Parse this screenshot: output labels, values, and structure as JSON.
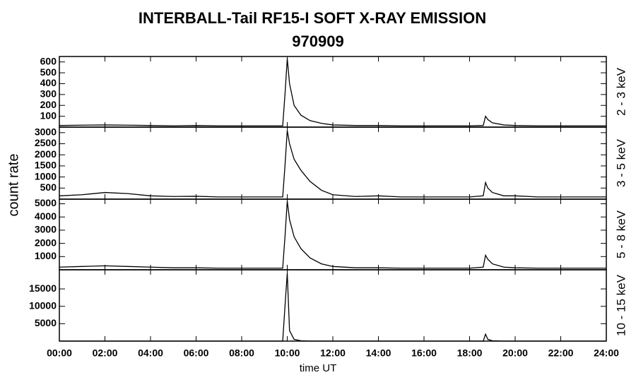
{
  "chart_data": [
    {
      "type": "line",
      "title": "INTERBALL-Tail RF15-I SOFT X-RAY EMISSION",
      "subtitle": "970909",
      "ylabel": "count rate",
      "panel_label": "2 - 3 keV",
      "color": "#000000",
      "xlim": [
        0,
        24
      ],
      "ylim": [
        0,
        650
      ],
      "yticks": [
        100,
        200,
        300,
        400,
        500,
        600
      ],
      "x": [
        0,
        1,
        2,
        3,
        4,
        5,
        6,
        7,
        8,
        9,
        9.8,
        9.9,
        10.0,
        10.1,
        10.3,
        10.6,
        11,
        11.5,
        12,
        13,
        14,
        15,
        16,
        17,
        18,
        18.6,
        18.7,
        18.8,
        19.0,
        19.5,
        20,
        21,
        22,
        23,
        24
      ],
      "values": [
        15,
        18,
        20,
        18,
        15,
        12,
        15,
        12,
        12,
        12,
        12,
        300,
        630,
        400,
        200,
        110,
        60,
        35,
        20,
        15,
        15,
        12,
        12,
        12,
        12,
        15,
        100,
        70,
        40,
        20,
        15,
        12,
        12,
        12,
        12
      ]
    },
    {
      "type": "line",
      "panel_label": "3 - 5 keV",
      "color": "#000000",
      "xlim": [
        0,
        24
      ],
      "ylim": [
        0,
        3250
      ],
      "yticks": [
        500,
        1000,
        1500,
        2000,
        2500,
        3000
      ],
      "x": [
        0,
        1,
        2,
        3,
        4,
        5,
        6,
        7,
        8,
        9,
        9.8,
        9.9,
        10.0,
        10.1,
        10.3,
        10.6,
        11,
        11.5,
        12,
        13,
        14,
        15,
        16,
        17,
        18,
        18.6,
        18.7,
        18.8,
        19.0,
        19.5,
        20,
        21,
        22,
        23,
        24
      ],
      "values": [
        150,
        200,
        300,
        250,
        150,
        120,
        130,
        100,
        100,
        100,
        100,
        1500,
        3100,
        2500,
        1800,
        1300,
        800,
        400,
        200,
        120,
        150,
        100,
        100,
        100,
        100,
        150,
        750,
        500,
        300,
        150,
        150,
        100,
        100,
        100,
        100
      ]
    },
    {
      "type": "line",
      "panel_label": "5 - 8 keV",
      "color": "#000000",
      "xlim": [
        0,
        24
      ],
      "ylim": [
        0,
        5350
      ],
      "yticks": [
        1000,
        2000,
        3000,
        4000,
        5000
      ],
      "x": [
        0,
        1,
        2,
        3,
        4,
        5,
        6,
        7,
        8,
        9,
        9.8,
        9.9,
        10.0,
        10.1,
        10.3,
        10.6,
        11,
        11.5,
        12,
        13,
        14,
        15,
        16,
        17,
        18,
        18.6,
        18.7,
        18.8,
        19.0,
        19.5,
        20,
        21,
        22,
        23,
        24
      ],
      "values": [
        200,
        250,
        300,
        250,
        200,
        150,
        150,
        120,
        120,
        120,
        120,
        2500,
        5200,
        3800,
        2500,
        1600,
        900,
        450,
        250,
        150,
        150,
        120,
        120,
        120,
        120,
        200,
        1100,
        800,
        450,
        200,
        150,
        120,
        120,
        120,
        120
      ]
    },
    {
      "type": "line",
      "panel_label": "10 - 15 keV",
      "xlabel": "time UT",
      "color": "#000000",
      "xlim": [
        0,
        24
      ],
      "ylim": [
        0,
        20500
      ],
      "yticks": [
        5000,
        10000,
        15000
      ],
      "xticks": [
        {
          "value": 0,
          "label": "00:00"
        },
        {
          "value": 2,
          "label": "02:00"
        },
        {
          "value": 4,
          "label": "04:00"
        },
        {
          "value": 6,
          "label": "06:00"
        },
        {
          "value": 8,
          "label": "08:00"
        },
        {
          "value": 10,
          "label": "10:00"
        },
        {
          "value": 12,
          "label": "12:00"
        },
        {
          "value": 14,
          "label": "14:00"
        },
        {
          "value": 16,
          "label": "16:00"
        },
        {
          "value": 18,
          "label": "18:00"
        },
        {
          "value": 20,
          "label": "20:00"
        },
        {
          "value": 22,
          "label": "22:00"
        },
        {
          "value": 24,
          "label": "24:00"
        }
      ],
      "x": [
        0,
        1,
        2,
        3,
        4,
        5,
        6,
        7,
        8,
        9,
        9.8,
        9.9,
        10.0,
        10.1,
        10.3,
        10.6,
        11,
        11.5,
        12,
        13,
        14,
        15,
        16,
        17,
        18,
        18.6,
        18.7,
        18.8,
        19.0,
        19.5,
        20,
        21,
        22,
        23,
        24
      ],
      "values": [
        0,
        0,
        0,
        0,
        0,
        0,
        0,
        0,
        0,
        0,
        0,
        10000,
        19500,
        3000,
        500,
        100,
        0,
        0,
        0,
        0,
        0,
        0,
        0,
        0,
        0,
        0,
        2000,
        500,
        100,
        0,
        0,
        0,
        0,
        0,
        0
      ]
    }
  ]
}
